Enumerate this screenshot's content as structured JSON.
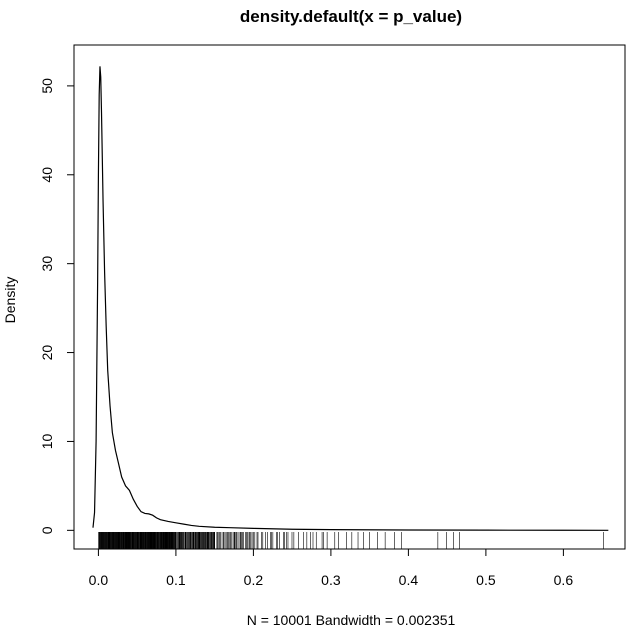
{
  "chart_data": {
    "type": "line",
    "title": "density.default(x = p_value)",
    "xlabel": "N = 10001   Bandwidth = 0.002351",
    "ylabel": "Density",
    "xlim": [
      -0.0315,
      0.6795
    ],
    "ylim": [
      -2.1,
      54.6
    ],
    "x_ticks": [
      0.0,
      0.1,
      0.2,
      0.3,
      0.4,
      0.5,
      0.6
    ],
    "x_tick_labels": [
      "0.0",
      "0.1",
      "0.2",
      "0.3",
      "0.4",
      "0.5",
      "0.6"
    ],
    "y_ticks": [
      0,
      10,
      20,
      30,
      40,
      50
    ],
    "y_tick_labels": [
      "0",
      "10",
      "20",
      "30",
      "40",
      "50"
    ],
    "grid": false,
    "series": [
      {
        "x": [
          -0.007,
          -0.005,
          -0.003,
          -0.001,
          0.0,
          0.001,
          0.002,
          0.003,
          0.004,
          0.005,
          0.006,
          0.008,
          0.01,
          0.012,
          0.015,
          0.018,
          0.022,
          0.026,
          0.03,
          0.035,
          0.04,
          0.045,
          0.05,
          0.055,
          0.06,
          0.065,
          0.07,
          0.075,
          0.08,
          0.09,
          0.1,
          0.11,
          0.12,
          0.13,
          0.15,
          0.17,
          0.2,
          0.25,
          0.3,
          0.4,
          0.5,
          0.6,
          0.658
        ],
        "y": [
          0.3,
          2.0,
          10.0,
          28.0,
          40.0,
          49.0,
          52.2,
          51.0,
          47.0,
          42.0,
          37.0,
          29.0,
          23.0,
          18.0,
          14.0,
          11.0,
          9.0,
          7.5,
          6.0,
          5.0,
          4.5,
          3.5,
          2.7,
          2.1,
          1.9,
          1.85,
          1.7,
          1.4,
          1.2,
          1.0,
          0.85,
          0.7,
          0.55,
          0.45,
          0.35,
          0.3,
          0.22,
          0.12,
          0.08,
          0.04,
          0.02,
          0.01,
          0.0
        ]
      }
    ],
    "rug": {
      "dense_ranges": [
        [
          0.0,
          0.1
        ],
        [
          0.1,
          0.15
        ],
        [
          0.15,
          0.2
        ],
        [
          0.2,
          0.25
        ],
        [
          0.25,
          0.3
        ]
      ],
      "dense_counts": [
        220,
        70,
        35,
        18,
        10
      ],
      "sparse": [
        0.305,
        0.31,
        0.32,
        0.327,
        0.335,
        0.342,
        0.35,
        0.36,
        0.37,
        0.382,
        0.391,
        0.438,
        0.449,
        0.458,
        0.466,
        0.652
      ]
    }
  }
}
